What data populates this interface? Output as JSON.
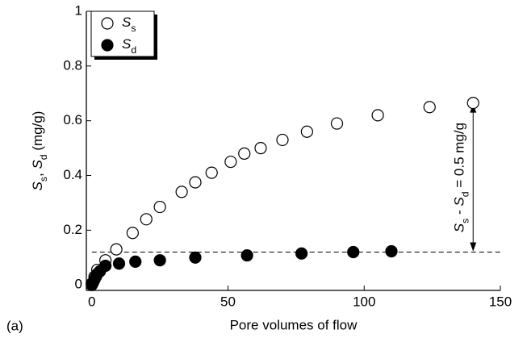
{
  "chart_data": {
    "type": "scatter",
    "xlabel": "Pore volumes of flow",
    "ylabel": "Ss, Sd (mg/g)",
    "panel_label": "(a)",
    "annotation": "Ss - Sd = 0.5 mg/g",
    "reference_line": 0.12,
    "arrow": {
      "x": 140,
      "from": 0.12,
      "to": 0.665
    },
    "xlim": [
      -2,
      150
    ],
    "ylim": [
      -0.02,
      1
    ],
    "xticks": [
      0,
      50,
      100,
      150
    ],
    "yticks": [
      0,
      0.2,
      0.4,
      0.6,
      0.8,
      1
    ],
    "legend": "upper left",
    "series": [
      {
        "name": "Ss",
        "color": "#000000",
        "marker": "open",
        "x": [
          0,
          1,
          2,
          5,
          9,
          15,
          20,
          25,
          33,
          38,
          44,
          51,
          56,
          62,
          70,
          79,
          90,
          105,
          124,
          140
        ],
        "values": [
          0.005,
          0.03,
          0.055,
          0.09,
          0.13,
          0.19,
          0.24,
          0.285,
          0.34,
          0.375,
          0.41,
          0.45,
          0.48,
          0.5,
          0.53,
          0.56,
          0.59,
          0.62,
          0.65,
          0.665
        ]
      },
      {
        "name": "Sd",
        "color": "#000000",
        "marker": "filled",
        "x": [
          0,
          0.5,
          1,
          1.5,
          2,
          3,
          5,
          10,
          16,
          25,
          38,
          57,
          77,
          96,
          110
        ],
        "values": [
          0,
          0.01,
          0.02,
          0.03,
          0.04,
          0.05,
          0.07,
          0.078,
          0.085,
          0.09,
          0.1,
          0.108,
          0.115,
          0.12,
          0.123
        ]
      }
    ]
  }
}
